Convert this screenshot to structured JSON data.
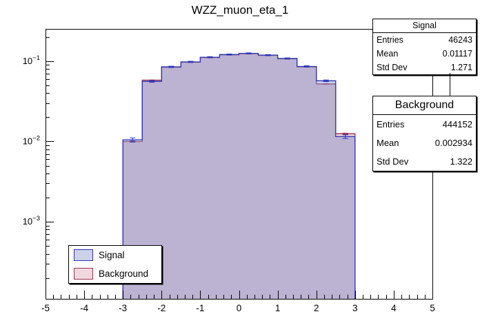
{
  "title": "WZZ_muon_eta_1",
  "chart_data": {
    "type": "histogram",
    "title": "WZZ_muon_eta_1",
    "x_range": [
      -5,
      5
    ],
    "y_range": [
      0.00011,
      0.252
    ],
    "y_scale": "log",
    "grid": false,
    "x_tick_labels": [
      "-5",
      "-4",
      "-3",
      "-2",
      "-1",
      "0",
      "1",
      "2",
      "3",
      "4",
      "5"
    ],
    "y_label_exponents": [
      -1,
      -2,
      -3
    ],
    "bin_edges": [
      -3,
      -2.5,
      -2,
      -1.5,
      -1,
      -0.5,
      0,
      0.5,
      1,
      1.5,
      2,
      2.5,
      3
    ],
    "series": [
      {
        "name": "Signal",
        "values": [
          0.0105,
          0.056,
          0.085,
          0.098,
          0.112,
          0.121,
          0.125,
          0.119,
          0.108,
          0.086,
          0.057,
          0.0115
        ],
        "errors": [
          0.0006,
          0.0013,
          0.0016,
          0.0017,
          0.0018,
          0.0019,
          0.0019,
          0.0019,
          0.0018,
          0.0016,
          0.0013,
          0.0006
        ],
        "line_color": "#2a35b5",
        "fill_color": "rgba(130,145,205,0.45)",
        "swatch_fill": "#ccd2e8"
      },
      {
        "name": "Background",
        "values": [
          0.01,
          0.058,
          0.084,
          0.097,
          0.111,
          0.12,
          0.124,
          0.118,
          0.107,
          0.085,
          0.052,
          0.0125
        ],
        "errors": [
          0.0002,
          0.0004,
          0.0005,
          0.0005,
          0.0006,
          0.0006,
          0.0006,
          0.0006,
          0.0005,
          0.0005,
          0.0004,
          0.0002
        ],
        "line_color": "#97344f",
        "fill_color": "rgba(220,165,180,0.55)",
        "swatch_fill": "#f0d9de"
      }
    ]
  },
  "stats_signal": {
    "title": "Signal",
    "rows": [
      {
        "label": "Entries",
        "value": "46243"
      },
      {
        "label": "Mean",
        "value": "0.01117"
      },
      {
        "label": "Std Dev",
        "value": "1.271"
      }
    ]
  },
  "stats_background": {
    "title": "Background",
    "rows": [
      {
        "label": "Entries",
        "value": "444152"
      },
      {
        "label": "Mean",
        "value": "0.002934"
      },
      {
        "label": "Std Dev",
        "value": "1.322"
      }
    ]
  },
  "legend": {
    "items": [
      {
        "label": "Signal"
      },
      {
        "label": "Background"
      }
    ]
  }
}
